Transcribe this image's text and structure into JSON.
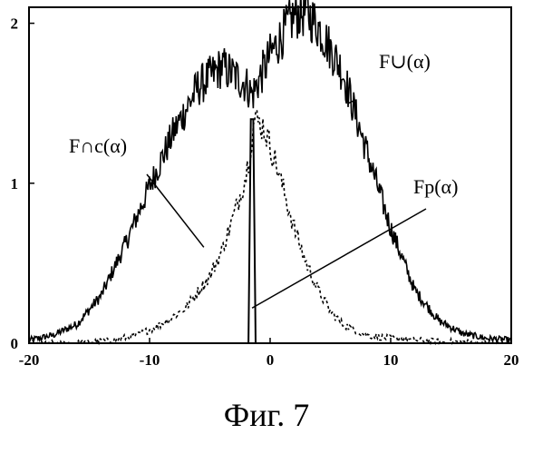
{
  "figure": {
    "caption": "Фиг. 7"
  },
  "chart_data": {
    "type": "line",
    "xlim": [
      -20,
      20
    ],
    "ylim": [
      0,
      2.1
    ],
    "x_ticks": [
      -20,
      -10,
      0,
      10,
      20
    ],
    "x_tick_labels": [
      "-20",
      "-10",
      "0",
      "10",
      "20"
    ],
    "y_ticks": [
      0,
      1,
      2
    ],
    "y_tick_labels": [
      "0",
      "1",
      "2"
    ],
    "grid": false,
    "series": [
      {
        "name": "F∪(α)",
        "style": "solid",
        "x": [
          -20,
          -18,
          -16,
          -14,
          -12,
          -10,
          -8,
          -6,
          -4,
          -2,
          -1.5,
          0,
          2,
          3,
          4,
          6,
          8,
          10,
          12,
          14,
          16,
          18,
          20
        ],
        "y": [
          0.02,
          0.05,
          0.12,
          0.3,
          0.62,
          0.98,
          1.32,
          1.6,
          1.73,
          1.62,
          1.55,
          1.8,
          2.05,
          2.07,
          1.98,
          1.7,
          1.2,
          0.72,
          0.33,
          0.14,
          0.06,
          0.03,
          0.02
        ],
        "label_text": "F∪(α)",
        "annotation_point": [
          6.5,
          1.5
        ]
      },
      {
        "name": "F∩c(α)",
        "style": "dashed",
        "x": [
          -20,
          -16,
          -13,
          -11,
          -9,
          -7,
          -5,
          -4,
          -3,
          -2,
          -1.3,
          -0.5,
          0.5,
          2,
          3,
          4,
          5,
          6,
          8,
          10,
          14,
          20
        ],
        "y": [
          0,
          0,
          0.02,
          0.05,
          0.12,
          0.22,
          0.42,
          0.58,
          0.8,
          1.05,
          1.4,
          1.35,
          1.12,
          0.72,
          0.5,
          0.33,
          0.2,
          0.12,
          0.05,
          0.03,
          0.01,
          0
        ],
        "label_text": "F∩c(α)",
        "annotation_point": [
          -5.5,
          0.6
        ]
      },
      {
        "name": "Fp(α)",
        "style": "solid",
        "x": [
          -1.8,
          -1.6,
          -1.4,
          -1.2
        ],
        "y": [
          0,
          1.4,
          1.4,
          0
        ],
        "label_text": "Fp(α)",
        "annotation_point": [
          -1.5,
          0.22
        ]
      }
    ]
  }
}
